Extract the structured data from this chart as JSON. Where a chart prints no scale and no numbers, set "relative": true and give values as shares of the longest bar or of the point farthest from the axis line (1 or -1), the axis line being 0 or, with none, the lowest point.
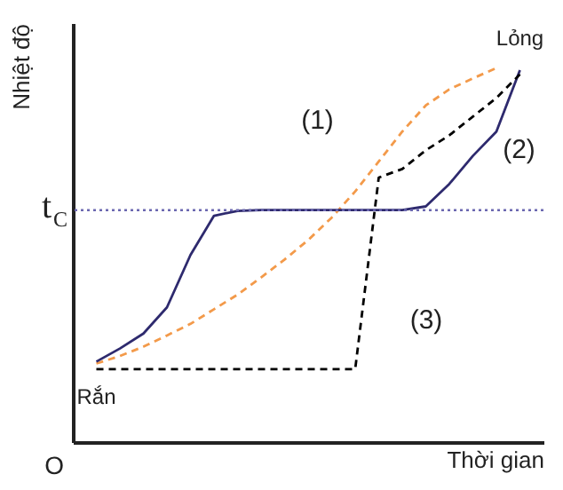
{
  "chart_data": {
    "type": "line",
    "relative": true,
    "xlabel": "Thời gian",
    "ylabel": "Nhiệt độ",
    "legend": false,
    "marker": "none",
    "categories": [
      null,
      null,
      null,
      null,
      null,
      null,
      null,
      null,
      null,
      null,
      null,
      null,
      null,
      null,
      null,
      null,
      null,
      null,
      null
    ],
    "series": [
      {
        "name": "(1)",
        "color": "#f39a4a",
        "line_style": "dashed",
        "values": [
          0.21,
          0.23,
          0.255,
          0.285,
          0.316,
          0.355,
          0.394,
          0.44,
          0.488,
          0.54,
          0.6,
          0.67,
          0.75,
          0.83,
          0.9,
          0.943,
          0.972,
          1.0,
          null
        ]
      },
      {
        "name": "(2)",
        "color": "#2e2a6e",
        "line_style": "solid",
        "values": [
          0.215,
          0.25,
          0.29,
          0.36,
          0.5,
          0.605,
          0.618,
          0.62,
          0.62,
          0.62,
          0.62,
          0.62,
          0.62,
          0.62,
          0.63,
          0.69,
          0.765,
          0.83,
          0.994
        ]
      },
      {
        "name": "(3)",
        "color": "#000000",
        "line_style": "dashed",
        "values": [
          0.195,
          0.195,
          0.195,
          0.195,
          0.195,
          0.195,
          0.195,
          0.195,
          0.195,
          0.195,
          0.195,
          0.195,
          0.707,
          0.73,
          0.78,
          0.82,
          0.87,
          0.92,
          0.983
        ]
      }
    ],
    "ref_lines": [
      {
        "axis": "y",
        "value": 0.62,
        "label": "t$_{C}$",
        "color": "#6b67b0",
        "line_style": "dotted"
      }
    ],
    "annotations": [
      "Rắn",
      "Lỏng",
      "O"
    ]
  }
}
